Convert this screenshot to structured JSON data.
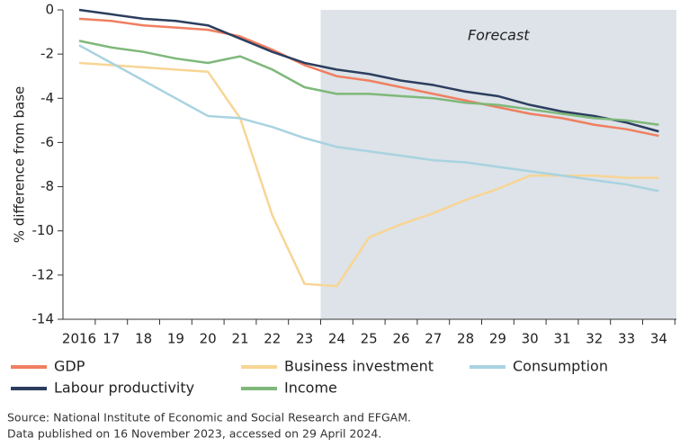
{
  "chart_data": {
    "type": "line",
    "y_label": "% difference from base",
    "categories": [
      "2016",
      "17",
      "18",
      "19",
      "20",
      "21",
      "22",
      "23",
      "24",
      "25",
      "26",
      "27",
      "28",
      "29",
      "30",
      "31",
      "32",
      "33",
      "34"
    ],
    "series": [
      {
        "name": "GDP",
        "color": "#f07f60",
        "values": [
          -0.4,
          -0.5,
          -0.7,
          -0.8,
          -0.9,
          -1.2,
          -1.8,
          -2.5,
          -3.0,
          -3.2,
          -3.5,
          -3.8,
          -4.1,
          -4.4,
          -4.7,
          -4.9,
          -5.2,
          -5.4,
          -5.7
        ]
      },
      {
        "name": "Business investment",
        "color": "#f8d595",
        "values": [
          -2.4,
          -2.5,
          -2.6,
          -2.7,
          -2.8,
          -4.9,
          -9.3,
          -12.4,
          -12.5,
          -10.3,
          -9.7,
          -9.2,
          -8.6,
          -8.1,
          -7.5,
          -7.5,
          -7.5,
          -7.6,
          -7.6
        ]
      },
      {
        "name": "Consumption",
        "color": "#a9d3e0",
        "values": [
          -1.6,
          -2.4,
          -3.2,
          -4.0,
          -4.8,
          -4.9,
          -5.3,
          -5.8,
          -6.2,
          -6.4,
          -6.6,
          -6.8,
          -6.9,
          -7.1,
          -7.3,
          -7.5,
          -7.7,
          -7.9,
          -8.2
        ]
      },
      {
        "name": "Labour productivity",
        "color": "#2c3e5f",
        "values": [
          0,
          -0.2,
          -0.4,
          -0.5,
          -0.7,
          -1.3,
          -1.9,
          -2.4,
          -2.7,
          -2.9,
          -3.2,
          -3.4,
          -3.7,
          -3.9,
          -4.3,
          -4.6,
          -4.8,
          -5.1,
          -5.5
        ]
      },
      {
        "name": "Income",
        "color": "#7fb87a",
        "values": [
          -1.4,
          -1.7,
          -1.9,
          -2.2,
          -2.4,
          -2.1,
          -2.7,
          -3.5,
          -3.8,
          -3.8,
          -3.9,
          -4.0,
          -4.2,
          -4.3,
          -4.5,
          -4.7,
          -4.9,
          -5.0,
          -5.2
        ]
      }
    ],
    "forecast": {
      "label": "Forecast",
      "start": "24",
      "color": "#dde3e8"
    },
    "ylim": [
      -14,
      0
    ],
    "yticks": [
      0,
      -2,
      -4,
      -6,
      -8,
      -10,
      -12,
      -14
    ],
    "grid": false,
    "source": [
      "Source: National Institute of Economic and Social Research and EFGAM.",
      "Data published on 16 November 2023, accessed on 29 April 2024."
    ]
  }
}
